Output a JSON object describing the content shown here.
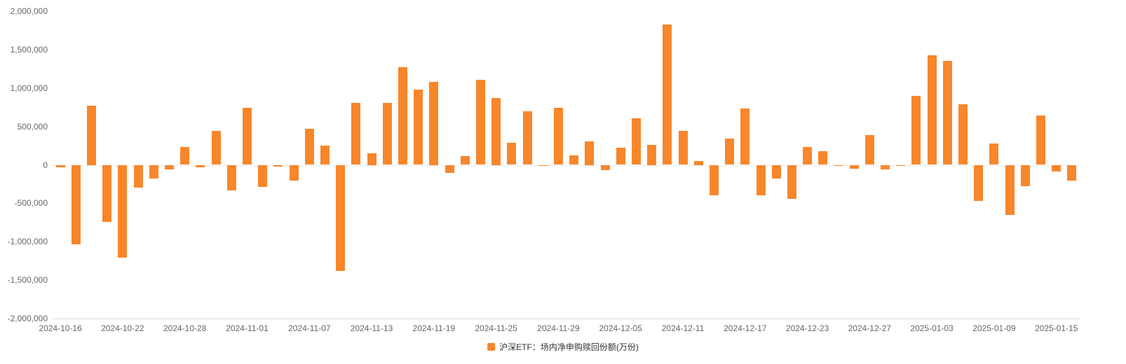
{
  "chart_data": {
    "type": "bar",
    "title": "",
    "xlabel": "",
    "ylabel": "",
    "series_name": "沪深ETF：场内净申购赎回份额(万份)",
    "bar_color": "#F8862B",
    "axis_text_color": "#666666",
    "ylim": [
      -2000000,
      2000000
    ],
    "grid": false,
    "legend_position": "bottom-center",
    "yticks": [
      2000000,
      1500000,
      1000000,
      500000,
      0,
      -500000,
      -1000000,
      -1500000,
      -2000000
    ],
    "ytick_labels": [
      "2,000,000",
      "1,500,000",
      "1,000,000",
      "500,000",
      "0",
      "-500,000",
      "-1,000,000",
      "-1,500,000",
      "-2,000,000"
    ],
    "x_axis_labels": [
      {
        "label": "2024-10-16",
        "bar_index": 0
      },
      {
        "label": "2024-10-22",
        "bar_index": 4
      },
      {
        "label": "2024-10-28",
        "bar_index": 8
      },
      {
        "label": "2024-11-01",
        "bar_index": 12
      },
      {
        "label": "2024-11-07",
        "bar_index": 16
      },
      {
        "label": "2024-11-13",
        "bar_index": 20
      },
      {
        "label": "2024-11-19",
        "bar_index": 24
      },
      {
        "label": "2024-11-25",
        "bar_index": 28
      },
      {
        "label": "2024-11-29",
        "bar_index": 32
      },
      {
        "label": "2024-12-05",
        "bar_index": 36
      },
      {
        "label": "2024-12-11",
        "bar_index": 40
      },
      {
        "label": "2024-12-17",
        "bar_index": 44
      },
      {
        "label": "2024-12-23",
        "bar_index": 48
      },
      {
        "label": "2024-12-27",
        "bar_index": 52
      },
      {
        "label": "2025-01-03",
        "bar_index": 56
      },
      {
        "label": "2025-01-09",
        "bar_index": 60
      },
      {
        "label": "2025-01-15",
        "bar_index": 64
      }
    ],
    "points": [
      {
        "date": "2024-10-16",
        "value": -30000
      },
      {
        "date": "2024-10-17",
        "value": -1030000
      },
      {
        "date": "2024-10-18",
        "value": 770000
      },
      {
        "date": "2024-10-21",
        "value": -740000
      },
      {
        "date": "2024-10-22",
        "value": -1210000
      },
      {
        "date": "2024-10-23",
        "value": -300000
      },
      {
        "date": "2024-10-24",
        "value": -180000
      },
      {
        "date": "2024-10-25",
        "value": -60000
      },
      {
        "date": "2024-10-28",
        "value": 230000
      },
      {
        "date": "2024-10-29",
        "value": -30000
      },
      {
        "date": "2024-10-30",
        "value": 440000
      },
      {
        "date": "2024-10-31",
        "value": -330000
      },
      {
        "date": "2024-11-01",
        "value": 740000
      },
      {
        "date": "2024-11-04",
        "value": -290000
      },
      {
        "date": "2024-11-05",
        "value": -20000
      },
      {
        "date": "2024-11-06",
        "value": -200000
      },
      {
        "date": "2024-11-07",
        "value": 470000
      },
      {
        "date": "2024-11-08",
        "value": 250000
      },
      {
        "date": "2024-11-11",
        "value": -1380000
      },
      {
        "date": "2024-11-12",
        "value": 810000
      },
      {
        "date": "2024-11-13",
        "value": 150000
      },
      {
        "date": "2024-11-14",
        "value": 810000
      },
      {
        "date": "2024-11-15",
        "value": 1270000
      },
      {
        "date": "2024-11-18",
        "value": 980000
      },
      {
        "date": "2024-11-19",
        "value": 1080000
      },
      {
        "date": "2024-11-20",
        "value": -100000
      },
      {
        "date": "2024-11-21",
        "value": 110000
      },
      {
        "date": "2024-11-22",
        "value": 1110000
      },
      {
        "date": "2024-11-25",
        "value": 870000
      },
      {
        "date": "2024-11-26",
        "value": 290000
      },
      {
        "date": "2024-11-27",
        "value": 700000
      },
      {
        "date": "2024-11-28",
        "value": -10000
      },
      {
        "date": "2024-11-29",
        "value": 740000
      },
      {
        "date": "2024-12-02",
        "value": 120000
      },
      {
        "date": "2024-12-03",
        "value": 310000
      },
      {
        "date": "2024-12-04",
        "value": -70000
      },
      {
        "date": "2024-12-05",
        "value": 220000
      },
      {
        "date": "2024-12-06",
        "value": 610000
      },
      {
        "date": "2024-12-09",
        "value": 260000
      },
      {
        "date": "2024-12-10",
        "value": 1830000
      },
      {
        "date": "2024-12-11",
        "value": 440000
      },
      {
        "date": "2024-12-12",
        "value": 50000
      },
      {
        "date": "2024-12-13",
        "value": -400000
      },
      {
        "date": "2024-12-16",
        "value": 340000
      },
      {
        "date": "2024-12-17",
        "value": 730000
      },
      {
        "date": "2024-12-18",
        "value": -400000
      },
      {
        "date": "2024-12-19",
        "value": -180000
      },
      {
        "date": "2024-12-20",
        "value": -440000
      },
      {
        "date": "2024-12-23",
        "value": 230000
      },
      {
        "date": "2024-12-24",
        "value": 180000
      },
      {
        "date": "2024-12-25",
        "value": -10000
      },
      {
        "date": "2024-12-26",
        "value": -50000
      },
      {
        "date": "2024-12-27",
        "value": 390000
      },
      {
        "date": "2024-12-30",
        "value": -60000
      },
      {
        "date": "2024-12-31",
        "value": -10000
      },
      {
        "date": "2025-01-02",
        "value": 900000
      },
      {
        "date": "2025-01-03",
        "value": 1430000
      },
      {
        "date": "2025-01-06",
        "value": 1350000
      },
      {
        "date": "2025-01-07",
        "value": 790000
      },
      {
        "date": "2025-01-08",
        "value": -470000
      },
      {
        "date": "2025-01-09",
        "value": 280000
      },
      {
        "date": "2025-01-10",
        "value": -650000
      },
      {
        "date": "2025-01-13",
        "value": -280000
      },
      {
        "date": "2025-01-14",
        "value": 640000
      },
      {
        "date": "2025-01-15",
        "value": -90000
      },
      {
        "date": "2025-01-16",
        "value": -200000
      }
    ]
  },
  "legend": {
    "label": "沪深ETF：场内净申购赎回份额(万份)"
  }
}
